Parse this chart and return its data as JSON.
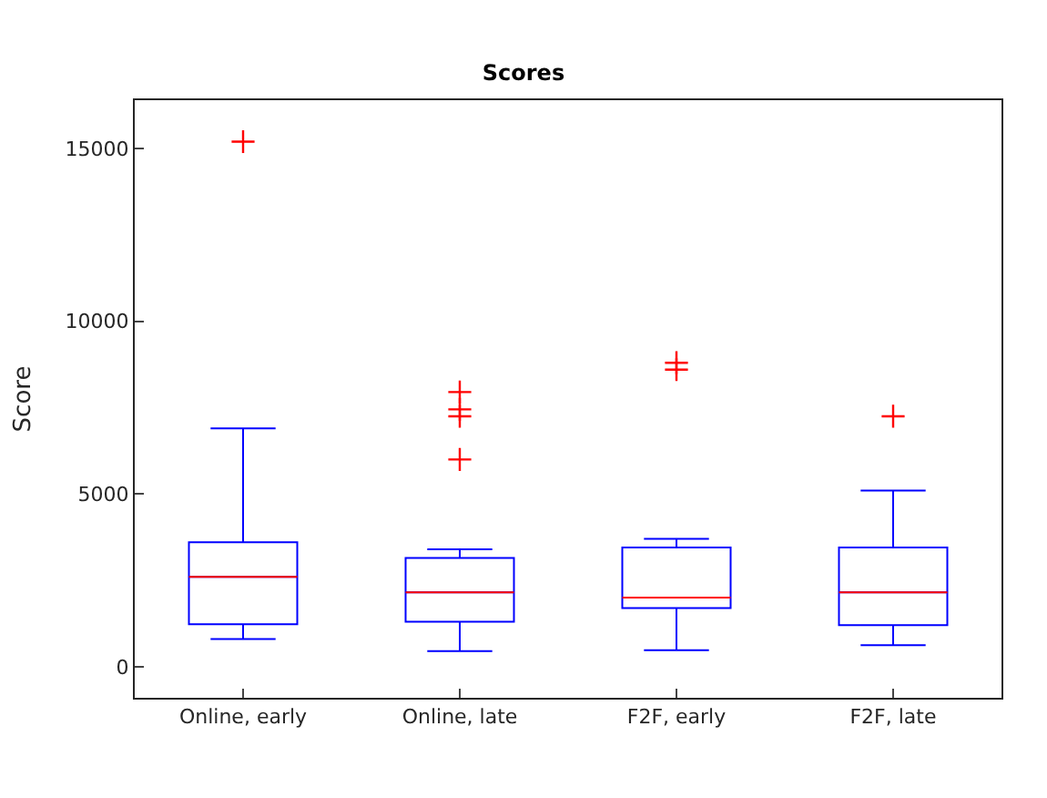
{
  "chart_data": {
    "type": "box",
    "title": "Scores",
    "ylabel": "Score",
    "categories": [
      "Online, early",
      "Online, late",
      "F2F, early",
      "F2F, late"
    ],
    "series": [
      {
        "color": "#0000ff",
        "boxes": [
          {
            "low": 800,
            "q1": 1230,
            "median": 2600,
            "q3": 3600,
            "high": 6900,
            "outliers": [
              15200
            ]
          },
          {
            "low": 450,
            "q1": 1300,
            "median": 2150,
            "q3": 3150,
            "high": 3400,
            "outliers": [
              6000,
              7250,
              7450,
              7950
            ]
          },
          {
            "low": 480,
            "q1": 1700,
            "median": 2000,
            "q3": 3450,
            "high": 3700,
            "outliers": [
              8600,
              8800
            ]
          },
          {
            "low": 620,
            "q1": 1200,
            "median": 2150,
            "q3": 3450,
            "high": 5100,
            "outliers": [
              7250
            ]
          }
        ]
      }
    ],
    "ylim": [
      -900,
      16400
    ],
    "yticks": [
      0,
      5000,
      10000,
      15000
    ]
  }
}
